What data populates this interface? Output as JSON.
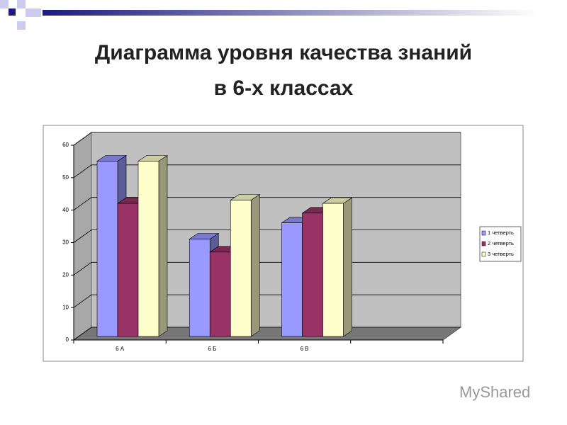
{
  "chart_data": {
    "type": "bar3d",
    "title": "Диаграмма уровня качества знаний",
    "subtitle": "в 6-х классах",
    "categories": [
      "6 А",
      "6 Б",
      "6 В"
    ],
    "series": [
      {
        "name": "1 четверть",
        "color": "#9999ff",
        "values": [
          54,
          30,
          35
        ]
      },
      {
        "name": "2 четверть",
        "color": "#993366",
        "values": [
          41,
          26,
          38
        ]
      },
      {
        "name": "3 четверть",
        "color": "#ffffcc",
        "values": [
          54,
          42,
          41
        ]
      }
    ],
    "ylim": [
      0,
      60
    ],
    "yticks": [
      0,
      10,
      20,
      30,
      40,
      50,
      60
    ],
    "grid": true,
    "legend": "right"
  },
  "watermark": "MyShared"
}
